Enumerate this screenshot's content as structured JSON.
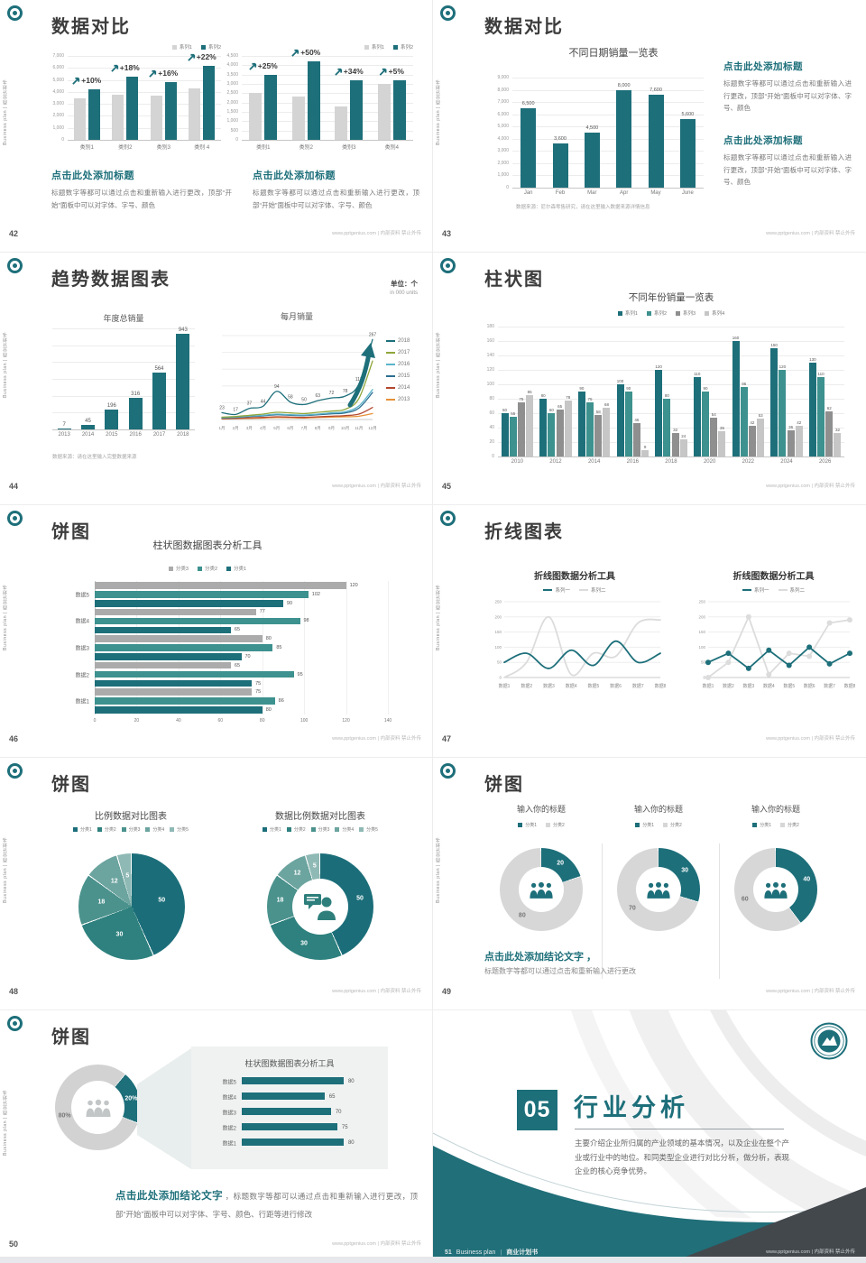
{
  "common": {
    "vertical_label": "Business plan | 商业计划书",
    "site": "www.pptgenius.com | 内部资料 禁止外传",
    "accent": "#1D6F7A"
  },
  "slides": {
    "s42": {
      "title": "数据对比",
      "page": "42",
      "blocks": [
        {
          "heading": "点击此处添加标题",
          "body": "标题数字等都可以通过点击和重新输入进行更改，顶部“开始”面板中可以对字体、字号、颜色"
        },
        {
          "heading": "点击此处添加标题",
          "body": "标题数字等都可以通过点击和重新输入进行更改，顶部“开始”面板中可以对字体、字号、颜色"
        }
      ]
    },
    "s43": {
      "title": "数据对比",
      "page": "43",
      "footnote": "数据来源：尼尔森零售研究，请在这里输入数据来源详情信息",
      "blocks": [
        {
          "heading": "点击此处添加标题",
          "body": "标题数字等都可以通过点击和重新输入进行更改，顶部“开始”面板中可以对字体、字号、颜色"
        },
        {
          "heading": "点击此处添加标题",
          "body": "标题数字等都可以通过点击和重新输入进行更改，顶部“开始”面板中可以对字体、字号、颜色"
        }
      ]
    },
    "s44": {
      "title": "趋势数据图表",
      "page": "44",
      "unit_cn": "单位：个",
      "unit_en": "in 000 units",
      "footnote": "数据来源：请在这里输入完整数据来源"
    },
    "s45": {
      "title": "柱状图",
      "page": "45"
    },
    "s46": {
      "title": "饼图",
      "page": "46"
    },
    "s47": {
      "title": "折线图表",
      "page": "47"
    },
    "s48": {
      "title": "饼图",
      "page": "48"
    },
    "s49": {
      "title": "饼图",
      "page": "49",
      "conclusion_heading": "点击此处添加结论文字 ，",
      "conclusion_text": "标题数字等都可以通过点击和重新输入进行更改"
    },
    "s50": {
      "title": "饼图",
      "page": "50",
      "conclusion_heading": "点击此处添加结论文字",
      "conclusion_text": " ，标题数字等都可以通过点击和重新输入进行更改，顶部“开始”面板中可以对字体、字号、颜色、行距等进行修改"
    },
    "s51": {
      "number": "05",
      "title": "行业分析",
      "body": "主要介绍企业所归属的产业领域的基本情况，以及企业在整个产业或行业中的地位。和同类型企业进行对比分析，做分析，表现企业的核心竞争优势。",
      "page": "51",
      "brand": "Business plan",
      "book": "商业计划书"
    }
  },
  "chart_data": [
    {
      "id": "s42l",
      "type": "bar",
      "max": 7000,
      "yticks": [
        "7,000",
        "6,000",
        "5,000",
        "4,000",
        "3,000",
        "2,000",
        "1,000",
        "0"
      ],
      "categories": [
        "类别1",
        "类别2",
        "类别3",
        "类别 4"
      ],
      "legend": [
        {
          "label": "系列1",
          "color": "#D4D4D4"
        },
        {
          "label": "系列2",
          "color": "#1D6F7A"
        }
      ],
      "series": [
        {
          "name": "系列1",
          "color": "#D4D4D4",
          "values": [
            3500,
            3800,
            3700,
            4300
          ]
        },
        {
          "name": "系列2",
          "color": "#1D6F7A",
          "values": [
            4200,
            5300,
            4800,
            6200
          ]
        }
      ],
      "pct": [
        "+10%",
        "+18%",
        "+16%",
        "+22%"
      ]
    },
    {
      "id": "s42r",
      "type": "bar",
      "max": 4500,
      "yticks": [
        "4,500",
        "4,000",
        "3,500",
        "3,000",
        "2,500",
        "2,000",
        "1,500",
        "1,000",
        "500",
        "0"
      ],
      "categories": [
        "类别1",
        "类别2",
        "类别3",
        "类别4"
      ],
      "legend": [
        {
          "label": "系列1",
          "color": "#D4D4D4"
        },
        {
          "label": "系列2",
          "color": "#1D6F7A"
        }
      ],
      "series": [
        {
          "name": "系列1",
          "color": "#D4D4D4",
          "values": [
            2500,
            2300,
            1800,
            3000
          ]
        },
        {
          "name": "系列2",
          "color": "#1D6F7A",
          "values": [
            3500,
            4200,
            3200,
            3200
          ]
        }
      ],
      "pct": [
        "+25%",
        "+50%",
        "+34%",
        "+5%"
      ]
    },
    {
      "id": "s43",
      "type": "bar",
      "title": "不同日期销量一览表",
      "max": 9000,
      "yticks": [
        "9,000",
        "8,000",
        "7,000",
        "6,000",
        "5,000",
        "4,000",
        "3,000",
        "2,000",
        "1,000",
        "0"
      ],
      "categories": [
        "Jan",
        "Feb",
        "Mar",
        "Apr",
        "May",
        "June"
      ],
      "series": [
        {
          "name": "销量",
          "color": "#1D6F7A",
          "values": [
            6500,
            3600,
            4500,
            8000,
            7600,
            5600
          ]
        }
      ],
      "value_labels": [
        "6,500",
        "3,600",
        "4,500",
        "8,000",
        "7,600",
        "5,600"
      ]
    },
    {
      "id": "s44b",
      "type": "bar",
      "title": "年度总销量",
      "max": 1000,
      "categories": [
        "2013",
        "2014",
        "2015",
        "2016",
        "2017",
        "2018"
      ],
      "series": [
        {
          "name": "总销量",
          "color": "#1D6F7A",
          "values": [
            7,
            45,
            196,
            316,
            564,
            943
          ],
          "labels": [
            "7",
            "45",
            "196",
            "316",
            "564",
            "943"
          ]
        }
      ]
    },
    {
      "id": "s44l",
      "type": "line",
      "title": "每月销量",
      "max": 280,
      "smooth": true,
      "x": [
        "1月",
        "2月",
        "3月",
        "4月",
        "5月",
        "6月",
        "7月",
        "8月",
        "9月",
        "10月",
        "11月",
        "12月"
      ],
      "legend": [
        {
          "label": "2018",
          "color": "#1D6F7A"
        },
        {
          "label": "2017",
          "color": "#8FA63B"
        },
        {
          "label": "2016",
          "color": "#5BB4CB"
        },
        {
          "label": "2015",
          "color": "#2C6E91"
        },
        {
          "label": "2014",
          "color": "#B2472E"
        },
        {
          "label": "2013",
          "color": "#E69038"
        }
      ],
      "series": [
        {
          "name": "2018",
          "color": "#1D6F7A",
          "values": [
            23,
            17,
            37,
            44,
            94,
            58,
            50,
            63,
            72,
            78,
            118,
            267
          ],
          "point_labels": [
            "23",
            "17",
            "37",
            "44",
            "94",
            "58",
            "50",
            "63",
            "72",
            "78",
            "118",
            "267"
          ]
        },
        {
          "name": "2017",
          "color": "#8FA63B",
          "values": [
            8,
            10,
            14,
            18,
            24,
            22,
            20,
            24,
            28,
            34,
            70,
            195
          ]
        },
        {
          "name": "2016",
          "color": "#5BB4CB",
          "values": [
            6,
            8,
            11,
            14,
            18,
            16,
            15,
            18,
            22,
            26,
            45,
            100
          ]
        },
        {
          "name": "2015",
          "color": "#2C6E91",
          "values": [
            5,
            7,
            10,
            12,
            16,
            14,
            13,
            16,
            19,
            22,
            38,
            90
          ]
        },
        {
          "name": "2014",
          "color": "#B2472E",
          "values": [
            3,
            4,
            6,
            7,
            9,
            8,
            7,
            9,
            11,
            13,
            18,
            40
          ]
        },
        {
          "name": "2013",
          "color": "#E69038",
          "values": [
            2,
            3,
            4,
            5,
            7,
            6,
            5,
            7,
            8,
            9,
            11,
            20
          ]
        }
      ]
    },
    {
      "id": "s45",
      "type": "bar",
      "title": "不同年份销量一览表",
      "max": 180,
      "value_labels_all": true,
      "yticks": [
        "180",
        "160",
        "140",
        "120",
        "100",
        "80",
        "60",
        "40",
        "20",
        "0"
      ],
      "categories": [
        "2010",
        "2012",
        "2014",
        "2016",
        "2018",
        "2020",
        "2022",
        "2024",
        "2026"
      ],
      "legend": [
        {
          "label": "系列1",
          "color": "#1D6F7A"
        },
        {
          "label": "系列2",
          "color": "#3D918E"
        },
        {
          "label": "系列3",
          "color": "#8F8F8F"
        },
        {
          "label": "系列4",
          "color": "#C6C6C6"
        }
      ],
      "series": [
        {
          "name": "系列1",
          "color": "#1D6F7A",
          "values": [
            60,
            80,
            90,
            100,
            120,
            110,
            160,
            150,
            130
          ]
        },
        {
          "name": "系列2",
          "color": "#3D918E",
          "values": [
            55,
            60,
            75,
            90,
            80,
            90,
            96,
            120,
            110
          ]
        },
        {
          "name": "系列3",
          "color": "#8F8F8F",
          "values": [
            75,
            65,
            58,
            46,
            32,
            54,
            42,
            36,
            62
          ]
        },
        {
          "name": "系列4",
          "color": "#C6C6C6",
          "values": [
            85,
            78,
            68,
            9,
            24,
            35,
            53,
            42,
            32
          ]
        }
      ]
    },
    {
      "id": "s46",
      "type": "hbar-group",
      "title": "柱状图数据图表分析工具",
      "max": 140,
      "xticks": [
        "0",
        "20",
        "40",
        "60",
        "80",
        "100",
        "120",
        "140"
      ],
      "groups": [
        "数据5",
        "数据4",
        "数据3",
        "数据2",
        "数据1"
      ],
      "legend": [
        {
          "label": "分类3",
          "color": "#ABABAB"
        },
        {
          "label": "分类2",
          "color": "#3D918E"
        },
        {
          "label": "分类1",
          "color": "#1D6F7A"
        }
      ],
      "series": [
        {
          "name": "分类3",
          "color": "#ABABAB"
        },
        {
          "name": "分类2",
          "color": "#3D918E"
        },
        {
          "name": "分类1",
          "color": "#1D6F7A"
        }
      ],
      "values": [
        [
          120,
          102,
          90
        ],
        [
          77,
          98,
          65
        ],
        [
          80,
          85,
          70
        ],
        [
          65,
          95,
          75
        ],
        [
          75,
          86,
          80
        ]
      ]
    },
    {
      "id": "s47l",
      "type": "line",
      "title": "折线图数据分析工具",
      "max": 250,
      "smooth": true,
      "yticks": [
        "250",
        "200",
        "150",
        "100",
        "50",
        "0"
      ],
      "x": [
        "数据1",
        "数据2",
        "数据3",
        "数据4",
        "数据5",
        "数据6",
        "数据7",
        "数据8"
      ],
      "legend": [
        {
          "label": "系列一",
          "color": "#1D6F7A"
        },
        {
          "label": "系列二",
          "color": "#DCDCDC"
        }
      ],
      "series": [
        {
          "name": "系列一",
          "color": "#1D6F7A",
          "values": [
            50,
            80,
            30,
            90,
            40,
            120,
            50,
            80
          ]
        },
        {
          "name": "系列二",
          "color": "#DCDCDC",
          "values": [
            0,
            50,
            200,
            10,
            80,
            70,
            180,
            190
          ]
        }
      ]
    },
    {
      "id": "s47r",
      "type": "line",
      "title": "折线图数据分析工具",
      "max": 250,
      "markers": true,
      "yticks": [
        "250",
        "200",
        "150",
        "100",
        "50",
        "0"
      ],
      "x": [
        "数据1",
        "数据2",
        "数据3",
        "数据4",
        "数据5",
        "数据6",
        "数据7",
        "数据8"
      ],
      "legend": [
        {
          "label": "系列一",
          "color": "#1D6F7A"
        },
        {
          "label": "系列二",
          "color": "#DCDCDC"
        }
      ],
      "series": [
        {
          "name": "系列一",
          "color": "#1D6F7A",
          "values": [
            50,
            80,
            30,
            90,
            40,
            100,
            45,
            80
          ]
        },
        {
          "name": "系列二",
          "color": "#DCDCDC",
          "values": [
            0,
            50,
            200,
            10,
            80,
            70,
            180,
            190
          ]
        }
      ]
    },
    {
      "id": "s48p",
      "type": "pie",
      "title": "比例数据对比图表",
      "values": [
        50,
        30,
        18,
        12,
        5
      ],
      "labels": [
        "50",
        "30",
        "18",
        "12",
        "5"
      ],
      "colors": [
        "#1B6E79",
        "#2E817E",
        "#4B928D",
        "#6CA49F",
        "#8FB9B5"
      ],
      "legend": [
        {
          "label": "分类1",
          "color": "#1B6E79"
        },
        {
          "label": "分类2",
          "color": "#2E817E"
        },
        {
          "label": "分类3",
          "color": "#4B928D"
        },
        {
          "label": "分类4",
          "color": "#6CA49F"
        },
        {
          "label": "分类5",
          "color": "#8FB9B5"
        }
      ]
    },
    {
      "id": "s48d",
      "type": "donut",
      "title": "数据比例数据对比图表",
      "values": [
        50,
        30,
        18,
        12,
        5
      ],
      "labels": [
        "50",
        "30",
        "18",
        "12",
        "5"
      ],
      "colors": [
        "#1B6E79",
        "#2E817E",
        "#4B928D",
        "#6CA49F",
        "#8FB9B5"
      ],
      "legend": [
        {
          "label": "分类1",
          "color": "#1B6E79"
        },
        {
          "label": "分类2",
          "color": "#2E817E"
        },
        {
          "label": "分类3",
          "color": "#4B928D"
        },
        {
          "label": "分类4",
          "color": "#6CA49F"
        },
        {
          "label": "分类5",
          "color": "#8FB9B5"
        }
      ]
    },
    {
      "id": "s49a",
      "type": "donut",
      "title": "输入你的标题",
      "values": [
        20,
        80
      ],
      "labels": [
        "20",
        "80"
      ],
      "colors": [
        "#1D6F7A",
        "#D7D7D7"
      ],
      "label_colors": [
        "#ffffff",
        "#777777"
      ],
      "legend": [
        {
          "label": "分类1",
          "color": "#1D6F7A"
        },
        {
          "label": "分类2",
          "color": "#D7D7D7"
        }
      ]
    },
    {
      "id": "s49b",
      "type": "donut",
      "title": "输入你的标题",
      "values": [
        30,
        70
      ],
      "labels": [
        "30",
        "70"
      ],
      "colors": [
        "#1D6F7A",
        "#D7D7D7"
      ],
      "label_colors": [
        "#ffffff",
        "#777777"
      ],
      "legend": [
        {
          "label": "分类1",
          "color": "#1D6F7A"
        },
        {
          "label": "分类2",
          "color": "#D7D7D7"
        }
      ]
    },
    {
      "id": "s49c",
      "type": "donut",
      "title": "输入你的标题",
      "values": [
        40,
        60
      ],
      "labels": [
        "40",
        "60"
      ],
      "colors": [
        "#1D6F7A",
        "#D7D7D7"
      ],
      "label_colors": [
        "#ffffff",
        "#777777"
      ],
      "legend": [
        {
          "label": "分类1",
          "color": "#1D6F7A"
        },
        {
          "label": "分类2",
          "color": "#D7D7D7"
        }
      ]
    },
    {
      "id": "s50d",
      "type": "donut",
      "values": [
        20,
        80
      ],
      "labels": [
        "20%",
        "80%"
      ],
      "colors": [
        "#1D6F7A",
        "#D2D2D2"
      ],
      "label_colors": [
        "#ffffff",
        "#777777"
      ]
    },
    {
      "id": "s50b",
      "type": "hbar",
      "title": "柱状图数据图表分析工具",
      "max": 85,
      "color": "#1D6F7A",
      "rows": [
        {
          "label": "数据5",
          "value": 80
        },
        {
          "label": "数据4",
          "value": 65
        },
        {
          "label": "数据3",
          "value": 70
        },
        {
          "label": "数据2",
          "value": 75
        },
        {
          "label": "数据1",
          "value": 80
        }
      ]
    }
  ]
}
